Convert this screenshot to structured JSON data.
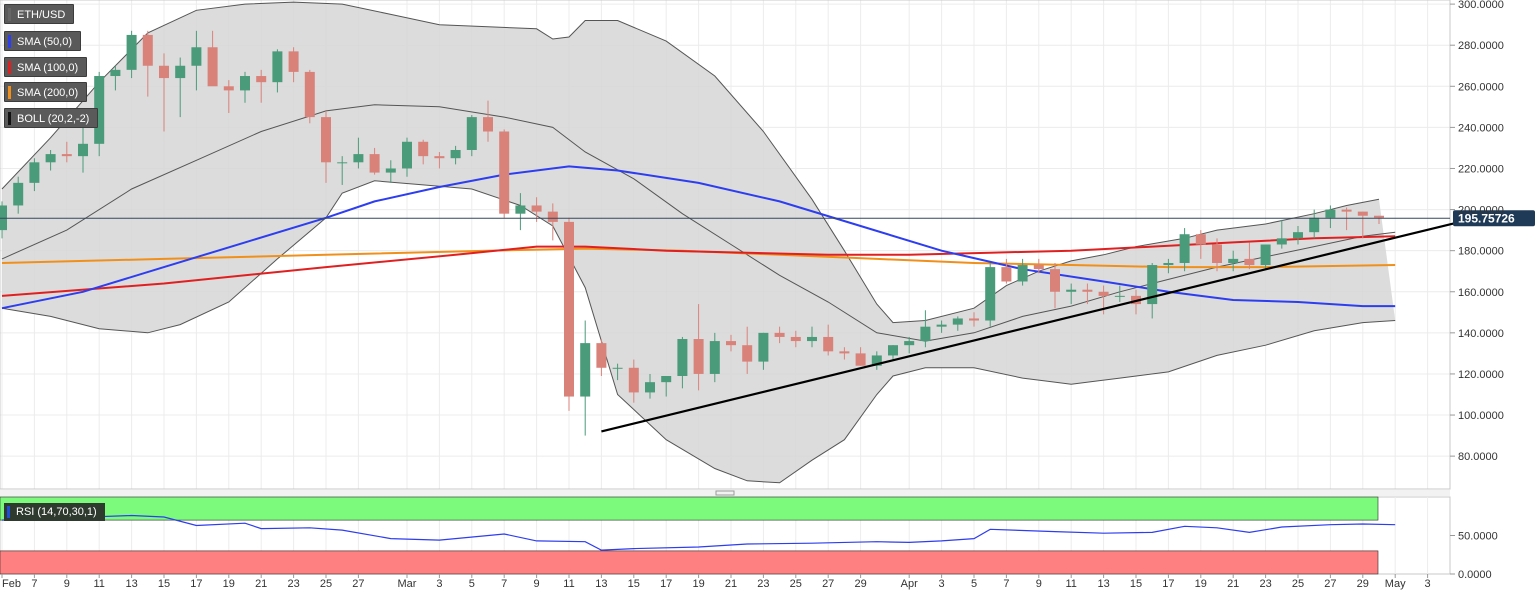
{
  "legend": [
    {
      "label": "ETH/USD",
      "color": "#666666"
    },
    {
      "label": "SMA (50,0)",
      "color": "#2d3df0"
    },
    {
      "label": "SMA (100,0)",
      "color": "#e02020"
    },
    {
      "label": "SMA (200,0)",
      "color": "#f0901a"
    },
    {
      "label": "BOLL (20,2,-2)",
      "color": "#111111"
    }
  ],
  "rsi_label": {
    "label": "RSI (14,70,30,1)",
    "color": "#1d4fd8"
  },
  "colors": {
    "bull": "#4a9b7a",
    "bear": "#d9827a",
    "bull_strong": "#2e7d5e",
    "bear_strong": "#d63a2a",
    "boll_fill": "#d6d6d6",
    "boll_line": "#555555",
    "rsi_overbought": "#7cfa7c",
    "rsi_oversold": "#ff8080",
    "rsi_line": "#2d3df0"
  },
  "chart_data": {
    "type": "candlestick",
    "ylim": [
      64,
      302
    ],
    "y_ticks": [
      "300.0000",
      "280.0000",
      "260.0000",
      "240.0000",
      "220.0000",
      "200.0000",
      "180.0000",
      "160.0000",
      "140.0000",
      "120.0000",
      "100.0000",
      "80.0000"
    ],
    "y_tick_values": [
      300,
      280,
      260,
      240,
      220,
      200,
      180,
      160,
      140,
      120,
      100,
      80
    ],
    "last_price": "195.75726",
    "last_price_value": 195.76,
    "x_ticks": [
      {
        "label": "Feb",
        "idx": 0
      },
      {
        "label": "7",
        "idx": 2
      },
      {
        "label": "9",
        "idx": 4
      },
      {
        "label": "11",
        "idx": 6
      },
      {
        "label": "13",
        "idx": 8
      },
      {
        "label": "15",
        "idx": 10
      },
      {
        "label": "17",
        "idx": 12
      },
      {
        "label": "19",
        "idx": 14
      },
      {
        "label": "21",
        "idx": 16
      },
      {
        "label": "23",
        "idx": 18
      },
      {
        "label": "25",
        "idx": 20
      },
      {
        "label": "27",
        "idx": 22
      },
      {
        "label": "Mar",
        "idx": 25
      },
      {
        "label": "3",
        "idx": 27
      },
      {
        "label": "5",
        "idx": 29
      },
      {
        "label": "7",
        "idx": 31
      },
      {
        "label": "9",
        "idx": 33
      },
      {
        "label": "11",
        "idx": 35
      },
      {
        "label": "13",
        "idx": 37
      },
      {
        "label": "15",
        "idx": 39
      },
      {
        "label": "17",
        "idx": 41
      },
      {
        "label": "19",
        "idx": 43
      },
      {
        "label": "21",
        "idx": 45
      },
      {
        "label": "23",
        "idx": 47
      },
      {
        "label": "25",
        "idx": 49
      },
      {
        "label": "27",
        "idx": 51
      },
      {
        "label": "29",
        "idx": 53
      },
      {
        "label": "Apr",
        "idx": 56
      },
      {
        "label": "3",
        "idx": 58
      },
      {
        "label": "5",
        "idx": 60
      },
      {
        "label": "7",
        "idx": 62
      },
      {
        "label": "9",
        "idx": 64
      },
      {
        "label": "11",
        "idx": 66
      },
      {
        "label": "13",
        "idx": 68
      },
      {
        "label": "15",
        "idx": 70
      },
      {
        "label": "17",
        "idx": 72
      },
      {
        "label": "19",
        "idx": 74
      },
      {
        "label": "21",
        "idx": 76
      },
      {
        "label": "23",
        "idx": 78
      },
      {
        "label": "25",
        "idx": 80
      },
      {
        "label": "27",
        "idx": 82
      },
      {
        "label": "29",
        "idx": 84
      },
      {
        "label": "May",
        "idx": 86
      },
      {
        "label": "3",
        "idx": 88
      }
    ],
    "candles": [
      [
        190,
        204,
        186,
        202
      ],
      [
        202,
        216,
        198,
        213
      ],
      [
        213,
        225,
        209,
        223
      ],
      [
        223,
        229,
        219,
        227
      ],
      [
        227,
        233,
        223,
        226
      ],
      [
        226,
        242,
        218,
        232
      ],
      [
        232,
        267,
        226,
        265
      ],
      [
        265,
        270,
        258,
        268
      ],
      [
        268,
        287,
        264,
        285
      ],
      [
        285,
        287,
        255,
        270
      ],
      [
        270,
        276,
        238,
        264
      ],
      [
        264,
        274,
        245,
        270
      ],
      [
        270,
        287,
        258,
        279
      ],
      [
        279,
        287,
        262,
        260
      ],
      [
        260,
        263,
        247,
        258
      ],
      [
        258,
        267,
        252,
        265
      ],
      [
        265,
        268,
        252,
        262
      ],
      [
        262,
        278,
        257,
        277
      ],
      [
        277,
        279,
        262,
        267
      ],
      [
        267,
        268,
        242,
        245
      ],
      [
        245,
        248,
        213,
        223
      ],
      [
        223,
        226,
        212,
        223
      ],
      [
        223,
        235,
        220,
        227
      ],
      [
        227,
        230,
        217,
        218
      ],
      [
        218,
        224,
        213,
        220
      ],
      [
        220,
        235,
        216,
        233
      ],
      [
        233,
        234,
        222,
        226
      ],
      [
        226,
        228,
        220,
        225
      ],
      [
        225,
        231,
        222,
        229
      ],
      [
        229,
        246,
        226,
        245
      ],
      [
        245,
        253,
        233,
        238
      ],
      [
        238,
        239,
        196,
        198
      ],
      [
        198,
        208,
        190,
        202
      ],
      [
        202,
        206,
        194,
        199
      ],
      [
        199,
        203,
        185,
        194
      ],
      [
        194,
        196,
        102,
        109
      ],
      [
        109,
        146,
        90,
        135
      ],
      [
        135,
        137,
        119,
        123
      ],
      [
        123,
        125,
        117,
        123
      ],
      [
        123,
        127,
        106,
        111
      ],
      [
        111,
        120,
        108,
        116
      ],
      [
        116,
        119,
        109,
        119
      ],
      [
        119,
        138,
        113,
        137
      ],
      [
        137,
        154,
        112,
        120
      ],
      [
        120,
        140,
        116,
        136
      ],
      [
        136,
        139,
        131,
        134
      ],
      [
        134,
        143,
        120,
        126
      ],
      [
        126,
        140,
        122,
        140
      ],
      [
        140,
        143,
        135,
        138
      ],
      [
        138,
        141,
        133,
        136
      ],
      [
        136,
        143,
        133,
        138
      ],
      [
        138,
        144,
        129,
        131
      ],
      [
        131,
        133,
        127,
        130
      ],
      [
        130,
        133,
        124,
        124
      ],
      [
        124,
        131,
        122,
        129
      ],
      [
        129,
        134,
        127,
        134
      ],
      [
        134,
        138,
        130,
        136
      ],
      [
        136,
        151,
        133,
        143
      ],
      [
        143,
        146,
        140,
        144
      ],
      [
        144,
        148,
        141,
        147
      ],
      [
        147,
        150,
        143,
        146
      ],
      [
        146,
        174,
        143,
        172
      ],
      [
        172,
        176,
        164,
        165
      ],
      [
        165,
        176,
        163,
        173
      ],
      [
        173,
        176,
        169,
        171
      ],
      [
        171,
        174,
        152,
        160
      ],
      [
        160,
        164,
        154,
        161
      ],
      [
        161,
        164,
        154,
        160
      ],
      [
        160,
        163,
        149,
        158
      ],
      [
        158,
        163,
        155,
        158
      ],
      [
        158,
        161,
        149,
        154
      ],
      [
        154,
        174,
        147,
        173
      ],
      [
        173,
        176,
        169,
        174
      ],
      [
        174,
        191,
        170,
        188
      ],
      [
        188,
        190,
        176,
        183
      ],
      [
        183,
        186,
        170,
        174
      ],
      [
        174,
        180,
        170,
        176
      ],
      [
        176,
        184,
        171,
        173
      ],
      [
        173,
        183,
        171,
        183
      ],
      [
        183,
        195,
        181,
        186
      ],
      [
        186,
        192,
        183,
        189
      ],
      [
        189,
        200,
        186,
        196
      ],
      [
        196,
        202,
        191,
        200
      ],
      [
        200,
        201,
        190,
        199
      ],
      [
        199,
        199,
        186,
        197
      ],
      [
        197,
        197,
        193,
        196
      ]
    ],
    "sma50": [
      [
        0,
        152
      ],
      [
        5,
        160
      ],
      [
        10,
        172
      ],
      [
        15,
        184
      ],
      [
        20,
        196
      ],
      [
        23,
        204
      ],
      [
        27,
        211
      ],
      [
        31,
        217
      ],
      [
        35,
        221
      ],
      [
        38,
        219
      ],
      [
        43,
        213
      ],
      [
        48,
        204
      ],
      [
        53,
        192
      ],
      [
        58,
        180
      ],
      [
        63,
        171
      ],
      [
        68,
        165
      ],
      [
        72,
        160
      ],
      [
        76,
        156
      ],
      [
        80,
        155
      ],
      [
        84,
        153
      ],
      [
        86,
        153
      ]
    ],
    "sma100": [
      [
        0,
        158
      ],
      [
        10,
        164
      ],
      [
        20,
        172
      ],
      [
        28,
        178
      ],
      [
        33,
        182
      ],
      [
        36,
        182
      ],
      [
        41,
        180
      ],
      [
        46,
        179
      ],
      [
        51,
        178
      ],
      [
        56,
        178
      ],
      [
        61,
        179
      ],
      [
        66,
        180
      ],
      [
        71,
        182
      ],
      [
        76,
        184
      ],
      [
        81,
        186
      ],
      [
        86,
        187
      ]
    ],
    "sma200": [
      [
        0,
        174
      ],
      [
        10,
        176
      ],
      [
        20,
        178
      ],
      [
        30,
        180
      ],
      [
        36,
        181
      ],
      [
        42,
        180
      ],
      [
        48,
        178
      ],
      [
        54,
        176
      ],
      [
        60,
        174
      ],
      [
        66,
        173
      ],
      [
        72,
        172
      ],
      [
        78,
        172
      ],
      [
        86,
        173
      ]
    ],
    "boll_upper": [
      [
        0,
        210
      ],
      [
        3,
        235
      ],
      [
        6,
        262
      ],
      [
        9,
        286
      ],
      [
        12,
        297
      ],
      [
        15,
        300
      ],
      [
        18,
        301
      ],
      [
        21,
        300
      ],
      [
        24,
        295
      ],
      [
        27,
        290
      ],
      [
        30,
        289
      ],
      [
        33,
        288
      ],
      [
        34,
        283
      ],
      [
        35,
        284
      ],
      [
        36,
        292
      ],
      [
        38,
        292
      ],
      [
        41,
        282
      ],
      [
        44,
        265
      ],
      [
        47,
        238
      ],
      [
        50,
        205
      ],
      [
        52,
        180
      ],
      [
        54,
        154
      ],
      [
        55,
        145
      ],
      [
        57,
        146
      ],
      [
        60,
        152
      ],
      [
        62,
        163
      ],
      [
        64,
        170
      ],
      [
        66,
        175
      ],
      [
        68,
        178
      ],
      [
        70,
        182
      ],
      [
        73,
        186
      ],
      [
        75,
        190
      ],
      [
        78,
        193
      ],
      [
        81,
        198
      ],
      [
        83,
        202
      ],
      [
        85,
        205
      ]
    ],
    "boll_mid": [
      [
        0,
        176
      ],
      [
        4,
        190
      ],
      [
        8,
        210
      ],
      [
        12,
        224
      ],
      [
        16,
        238
      ],
      [
        20,
        248
      ],
      [
        23,
        251
      ],
      [
        27,
        250
      ],
      [
        31,
        245
      ],
      [
        34,
        240
      ],
      [
        36,
        228
      ],
      [
        39,
        215
      ],
      [
        42,
        198
      ],
      [
        45,
        183
      ],
      [
        48,
        168
      ],
      [
        51,
        155
      ],
      [
        54,
        140
      ],
      [
        57,
        136
      ],
      [
        60,
        140
      ],
      [
        63,
        148
      ],
      [
        66,
        153
      ],
      [
        69,
        160
      ],
      [
        72,
        166
      ],
      [
        75,
        172
      ],
      [
        78,
        177
      ],
      [
        81,
        182
      ],
      [
        84,
        187
      ],
      [
        86,
        189
      ]
    ],
    "boll_lower": [
      [
        0,
        152
      ],
      [
        3,
        148
      ],
      [
        6,
        142
      ],
      [
        9,
        140
      ],
      [
        11,
        144
      ],
      [
        14,
        155
      ],
      [
        17,
        176
      ],
      [
        20,
        196
      ],
      [
        21,
        208
      ],
      [
        23,
        214
      ],
      [
        26,
        212
      ],
      [
        29,
        210
      ],
      [
        32,
        202
      ],
      [
        34,
        192
      ],
      [
        36,
        162
      ],
      [
        38,
        110
      ],
      [
        41,
        88
      ],
      [
        44,
        74
      ],
      [
        46,
        68
      ],
      [
        48,
        67
      ],
      [
        50,
        78
      ],
      [
        52,
        88
      ],
      [
        54,
        110
      ],
      [
        55,
        119
      ],
      [
        57,
        123
      ],
      [
        60,
        123
      ],
      [
        63,
        118
      ],
      [
        66,
        115
      ],
      [
        69,
        118
      ],
      [
        72,
        121
      ],
      [
        75,
        129
      ],
      [
        78,
        134
      ],
      [
        81,
        141
      ],
      [
        84,
        145
      ],
      [
        86,
        146
      ]
    ],
    "trendline": [
      [
        37,
        92
      ],
      [
        90,
        194
      ]
    ],
    "rsi": {
      "ylim": [
        0,
        100
      ],
      "y_ticks": [
        "50.0000",
        "0.0000"
      ],
      "y_tick_values": [
        50,
        0
      ],
      "overbought": 70,
      "oversold": 30,
      "values": [
        [
          0,
          70
        ],
        [
          4,
          73
        ],
        [
          8,
          76
        ],
        [
          10,
          74
        ],
        [
          12,
          63
        ],
        [
          15,
          66
        ],
        [
          16,
          59
        ],
        [
          19,
          60
        ],
        [
          21,
          57
        ],
        [
          24,
          46
        ],
        [
          27,
          44
        ],
        [
          31,
          52
        ],
        [
          33,
          43
        ],
        [
          36,
          42
        ],
        [
          37,
          31
        ],
        [
          39,
          33
        ],
        [
          43,
          35
        ],
        [
          46,
          39
        ],
        [
          50,
          40
        ],
        [
          54,
          42
        ],
        [
          56,
          41
        ],
        [
          58,
          43
        ],
        [
          60,
          46
        ],
        [
          61,
          58
        ],
        [
          65,
          55
        ],
        [
          68,
          53
        ],
        [
          71,
          54
        ],
        [
          73,
          62
        ],
        [
          75,
          60
        ],
        [
          77,
          54
        ],
        [
          79,
          61
        ],
        [
          82,
          64
        ],
        [
          84,
          65
        ],
        [
          86,
          64
        ]
      ]
    }
  }
}
